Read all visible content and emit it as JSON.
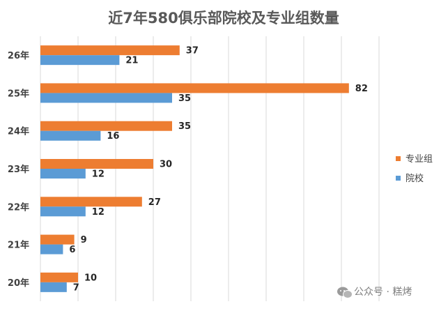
{
  "chart_data": {
    "type": "bar",
    "orientation": "horizontal",
    "title": "近7年580俱乐部院校及专业组数量",
    "categories": [
      "26年",
      "25年",
      "24年",
      "23年",
      "22年",
      "21年",
      "20年"
    ],
    "series": [
      {
        "name": "专业组",
        "color": "#ED7D31",
        "values": [
          37,
          82,
          35,
          30,
          27,
          9,
          10
        ]
      },
      {
        "name": "院校",
        "color": "#5B9BD5",
        "values": [
          21,
          35,
          16,
          12,
          12,
          6,
          7
        ]
      }
    ],
    "xlim": [
      0,
      90
    ],
    "grid": true,
    "legend": "right"
  },
  "watermark": "公众号 · 糕烤"
}
